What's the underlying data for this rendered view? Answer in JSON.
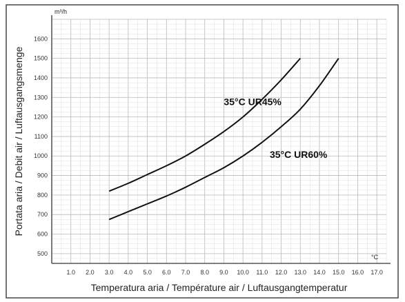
{
  "chart_data": {
    "type": "line",
    "xlabel": "Temperatura aria  / Température air / Luftausgangtemperatur",
    "ylabel": "Portata aria / Debit air  / Luftausgangsmenge",
    "x_unit": "°C",
    "y_unit": "m³/h",
    "xlim": [
      0,
      17.5
    ],
    "ylim": [
      450,
      1700
    ],
    "x_ticks": [
      1.0,
      2.0,
      3.0,
      4.0,
      5.0,
      6.0,
      7.0,
      8.0,
      9.0,
      10.0,
      11.0,
      12.0,
      13.0,
      14.0,
      15.0,
      16.0,
      17.0
    ],
    "x_tick_labels": [
      "1.0",
      "2.0",
      "3.0",
      "4.0",
      "5.0",
      "6.0",
      "7.0",
      "8.0",
      "9.0",
      "10.0",
      "11.0",
      "12.0",
      "13.0",
      "14.0",
      "15.0",
      "16.0",
      "17.0"
    ],
    "y_ticks": [
      500,
      600,
      700,
      800,
      900,
      1000,
      1100,
      1200,
      1300,
      1400,
      1500,
      1600
    ],
    "grid": true,
    "series": [
      {
        "label": "35°C UR45%",
        "color": "#111111",
        "x": [
          3.0,
          4.0,
          5.0,
          6.0,
          7.0,
          8.0,
          9.0,
          10.0,
          11.0,
          12.0,
          13.0
        ],
        "y": [
          820,
          860,
          905,
          950,
          1000,
          1060,
          1125,
          1200,
          1290,
          1390,
          1500
        ]
      },
      {
        "label": "35°C UR60%",
        "color": "#111111",
        "x": [
          3.0,
          4.0,
          5.0,
          6.0,
          7.0,
          8.0,
          9.0,
          10.0,
          11.0,
          12.0,
          13.0,
          14.0,
          15.0
        ],
        "y": [
          675,
          715,
          755,
          795,
          840,
          890,
          940,
          1000,
          1070,
          1150,
          1240,
          1360,
          1500
        ]
      }
    ],
    "annotations": [
      {
        "text": "35°C UR45%",
        "x": 9.0,
        "y": 1260
      },
      {
        "text": "35°C UR60%",
        "x": 11.4,
        "y": 990
      }
    ]
  }
}
